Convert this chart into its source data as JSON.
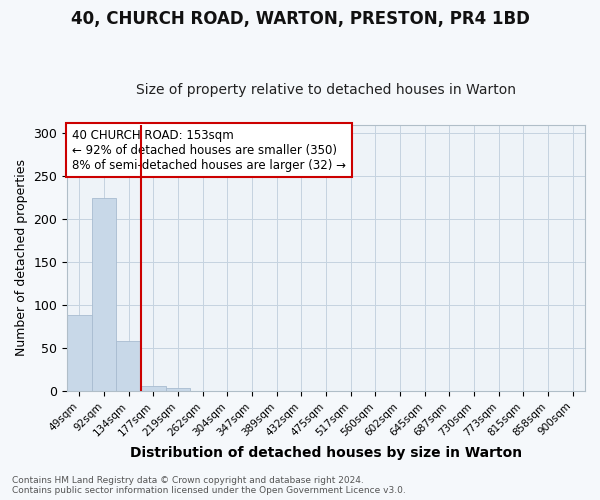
{
  "title": "40, CHURCH ROAD, WARTON, PRESTON, PR4 1BD",
  "subtitle": "Size of property relative to detached houses in Warton",
  "xlabel": "Distribution of detached houses by size in Warton",
  "ylabel": "Number of detached properties",
  "bin_labels": [
    "49sqm",
    "92sqm",
    "134sqm",
    "177sqm",
    "219sqm",
    "262sqm",
    "304sqm",
    "347sqm",
    "389sqm",
    "432sqm",
    "475sqm",
    "517sqm",
    "560sqm",
    "602sqm",
    "645sqm",
    "687sqm",
    "730sqm",
    "773sqm",
    "815sqm",
    "858sqm",
    "900sqm"
  ],
  "bar_values": [
    88,
    225,
    58,
    6,
    4,
    0,
    0,
    0,
    0,
    0,
    0,
    0,
    0,
    0,
    0,
    0,
    0,
    0,
    0,
    0,
    0
  ],
  "bar_color": "#c8d8e8",
  "bar_edge_color": "#a8bcd0",
  "vline_x": 2.5,
  "vline_color": "#cc0000",
  "annotation_text": "40 CHURCH ROAD: 153sqm\n← 92% of detached houses are smaller (350)\n8% of semi-detached houses are larger (32) →",
  "annotation_box_color": "#ffffff",
  "annotation_box_edge": "#cc0000",
  "ylim": [
    0,
    310
  ],
  "yticks": [
    0,
    50,
    100,
    150,
    200,
    250,
    300
  ],
  "footnote": "Contains HM Land Registry data © Crown copyright and database right 2024.\nContains public sector information licensed under the Open Government Licence v3.0.",
  "bg_color": "#f5f8fb",
  "plot_bg_color": "#eef3f8",
  "title_fontsize": 12,
  "subtitle_fontsize": 10
}
